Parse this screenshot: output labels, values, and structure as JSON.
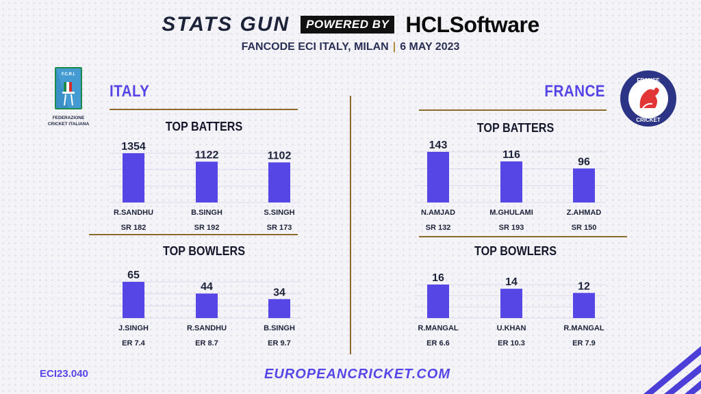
{
  "header": {
    "stats_gun": "STATS GUN",
    "powered_by": "POWERED BY",
    "sponsor": "HCLSoftware",
    "event": "FANCODE ECI ITALY, MILAN",
    "date": "6 MAY 2023"
  },
  "logos": {
    "italy_text_1": "F.C.R.I.",
    "italy_text_2": "FEDERAZIONE",
    "italy_text_3": "CRICKET ITALIANA",
    "france_text_1": "FRANCE",
    "france_text_2": "CRICKET"
  },
  "teams": {
    "left": "ITALY",
    "right": "FRANCE"
  },
  "section_titles": {
    "batters": "TOP BATTERS",
    "bowlers": "TOP BOWLERS"
  },
  "colors": {
    "bar": "#5646e6",
    "gold": "#8a6a2a",
    "accent": "#5646e6"
  },
  "chart_data": [
    {
      "type": "bar",
      "team": "ITALY",
      "title": "TOP BATTERS",
      "categories": [
        "R.SANDHU",
        "B.SINGH",
        "S.SINGH"
      ],
      "values": [
        1354,
        1122,
        1102
      ],
      "sublabels": [
        "SR 182",
        "SR 192",
        "SR 173"
      ],
      "ylim": [
        0,
        1354
      ]
    },
    {
      "type": "bar",
      "team": "ITALY",
      "title": "TOP BOWLERS",
      "categories": [
        "J.SINGH",
        "R.SANDHU",
        "B.SINGH"
      ],
      "values": [
        65,
        44,
        34
      ],
      "sublabels": [
        "ER 7.4",
        "ER 8.7",
        "ER 9.7"
      ],
      "ylim": [
        0,
        65
      ]
    },
    {
      "type": "bar",
      "team": "FRANCE",
      "title": "TOP BATTERS",
      "categories": [
        "N.AMJAD",
        "M.GHULAMI",
        "Z.AHMAD"
      ],
      "values": [
        143,
        116,
        96
      ],
      "sublabels": [
        "SR 132",
        "SR 193",
        "SR 150"
      ],
      "ylim": [
        0,
        143
      ]
    },
    {
      "type": "bar",
      "team": "FRANCE",
      "title": "TOP BOWLERS",
      "categories": [
        "R.MANGAL",
        "U.KHAN",
        "R.MANGAL"
      ],
      "values": [
        16,
        14,
        12
      ],
      "sublabels": [
        "ER 6.6",
        "ER 10.3",
        "ER 7.9"
      ],
      "ylim": [
        0,
        16
      ]
    }
  ],
  "footer": {
    "code": "ECI23.040",
    "website": "EUROPEANCRICKET.COM"
  }
}
